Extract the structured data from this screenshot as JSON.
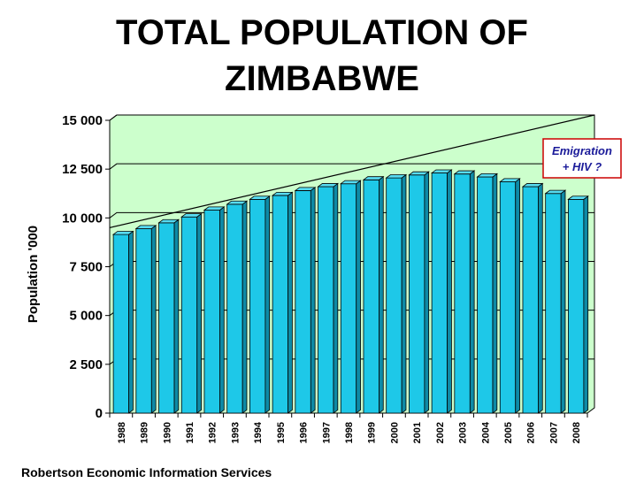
{
  "chart_data": {
    "type": "bar",
    "title_lines": [
      "TOTAL POPULATION OF",
      "ZIMBABWE"
    ],
    "ylabel": "Population '000",
    "xlabel": "",
    "ylim": [
      0,
      15000
    ],
    "yticks": [
      {
        "value": 0,
        "label": "0"
      },
      {
        "value": 2500,
        "label": "2 500"
      },
      {
        "value": 5000,
        "label": "5 000"
      },
      {
        "value": 7500,
        "label": "7 500"
      },
      {
        "value": 10000,
        "label": "10 000"
      },
      {
        "value": 12500,
        "label": "12 500"
      },
      {
        "value": 15000,
        "label": "15 000"
      }
    ],
    "categories": [
      "1988",
      "1989",
      "1990",
      "1991",
      "1992",
      "1993",
      "1994",
      "1995",
      "1996",
      "1997",
      "1998",
      "1999",
      "2000",
      "2001",
      "2002",
      "2003",
      "2004",
      "2005",
      "2006",
      "2007",
      "2008"
    ],
    "values": [
      9150,
      9450,
      9750,
      10050,
      10400,
      10700,
      10950,
      11150,
      11400,
      11600,
      11750,
      11950,
      12050,
      12200,
      12300,
      12250,
      12100,
      11850,
      11600,
      11250,
      10950
    ],
    "trend_line": {
      "from": [
        1988,
        9500
      ],
      "to": [
        2008,
        15000
      ]
    },
    "grid": "horizontal",
    "annotation_lines": [
      "Emigration ",
      "+ HIV ?"
    ],
    "colors": {
      "bar": "#1ec8e8",
      "bar_top": "#57dcf2",
      "bar_side": "#0e8aa6",
      "plot_background": "#ccffcc",
      "annotation_border": "#cc0000",
      "annotation_text": "#1a1a99"
    }
  },
  "source": "Robertson Economic Information Services"
}
